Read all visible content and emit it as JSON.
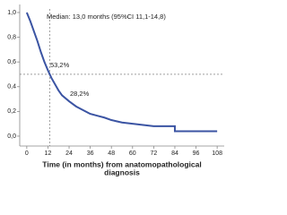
{
  "chart_data": {
    "type": "line",
    "x_label": [
      "Time (in months) from anatomopathological",
      "diagnosis"
    ],
    "annotations": [
      "Median: 13,0 months (95%CI 11,1-14,8)",
      "53,2%",
      "28,2%"
    ],
    "reference_lines": {
      "x": 13,
      "y": 0.5
    },
    "x": [
      0,
      2,
      4,
      6,
      8,
      10,
      12,
      14,
      16,
      18,
      20,
      24,
      28,
      32,
      36,
      40,
      44,
      48,
      54,
      60,
      66,
      72,
      84,
      84,
      108
    ],
    "series": [
      {
        "color": "#3b54a3",
        "values": [
          1.0,
          0.93,
          0.85,
          0.77,
          0.68,
          0.6,
          0.532,
          0.47,
          0.42,
          0.37,
          0.33,
          0.282,
          0.24,
          0.21,
          0.18,
          0.165,
          0.15,
          0.13,
          0.11,
          0.1,
          0.09,
          0.08,
          0.08,
          0.04,
          0.04
        ]
      }
    ],
    "xlim": [
      -4,
      112
    ],
    "ylim": [
      -0.08,
      1.065
    ],
    "xticks": [
      0,
      12,
      24,
      36,
      48,
      60,
      72,
      84,
      96,
      108
    ],
    "yticks": [
      {
        "value": 0,
        "label": "0,0"
      },
      {
        "value": 0.2,
        "label": "0,2"
      },
      {
        "value": 0.4,
        "label": "0,4"
      },
      {
        "value": 0.6,
        "label": "0,6"
      },
      {
        "value": 0.8,
        "label": "0,8"
      },
      {
        "value": 1.0,
        "label": "1,0"
      }
    ]
  }
}
